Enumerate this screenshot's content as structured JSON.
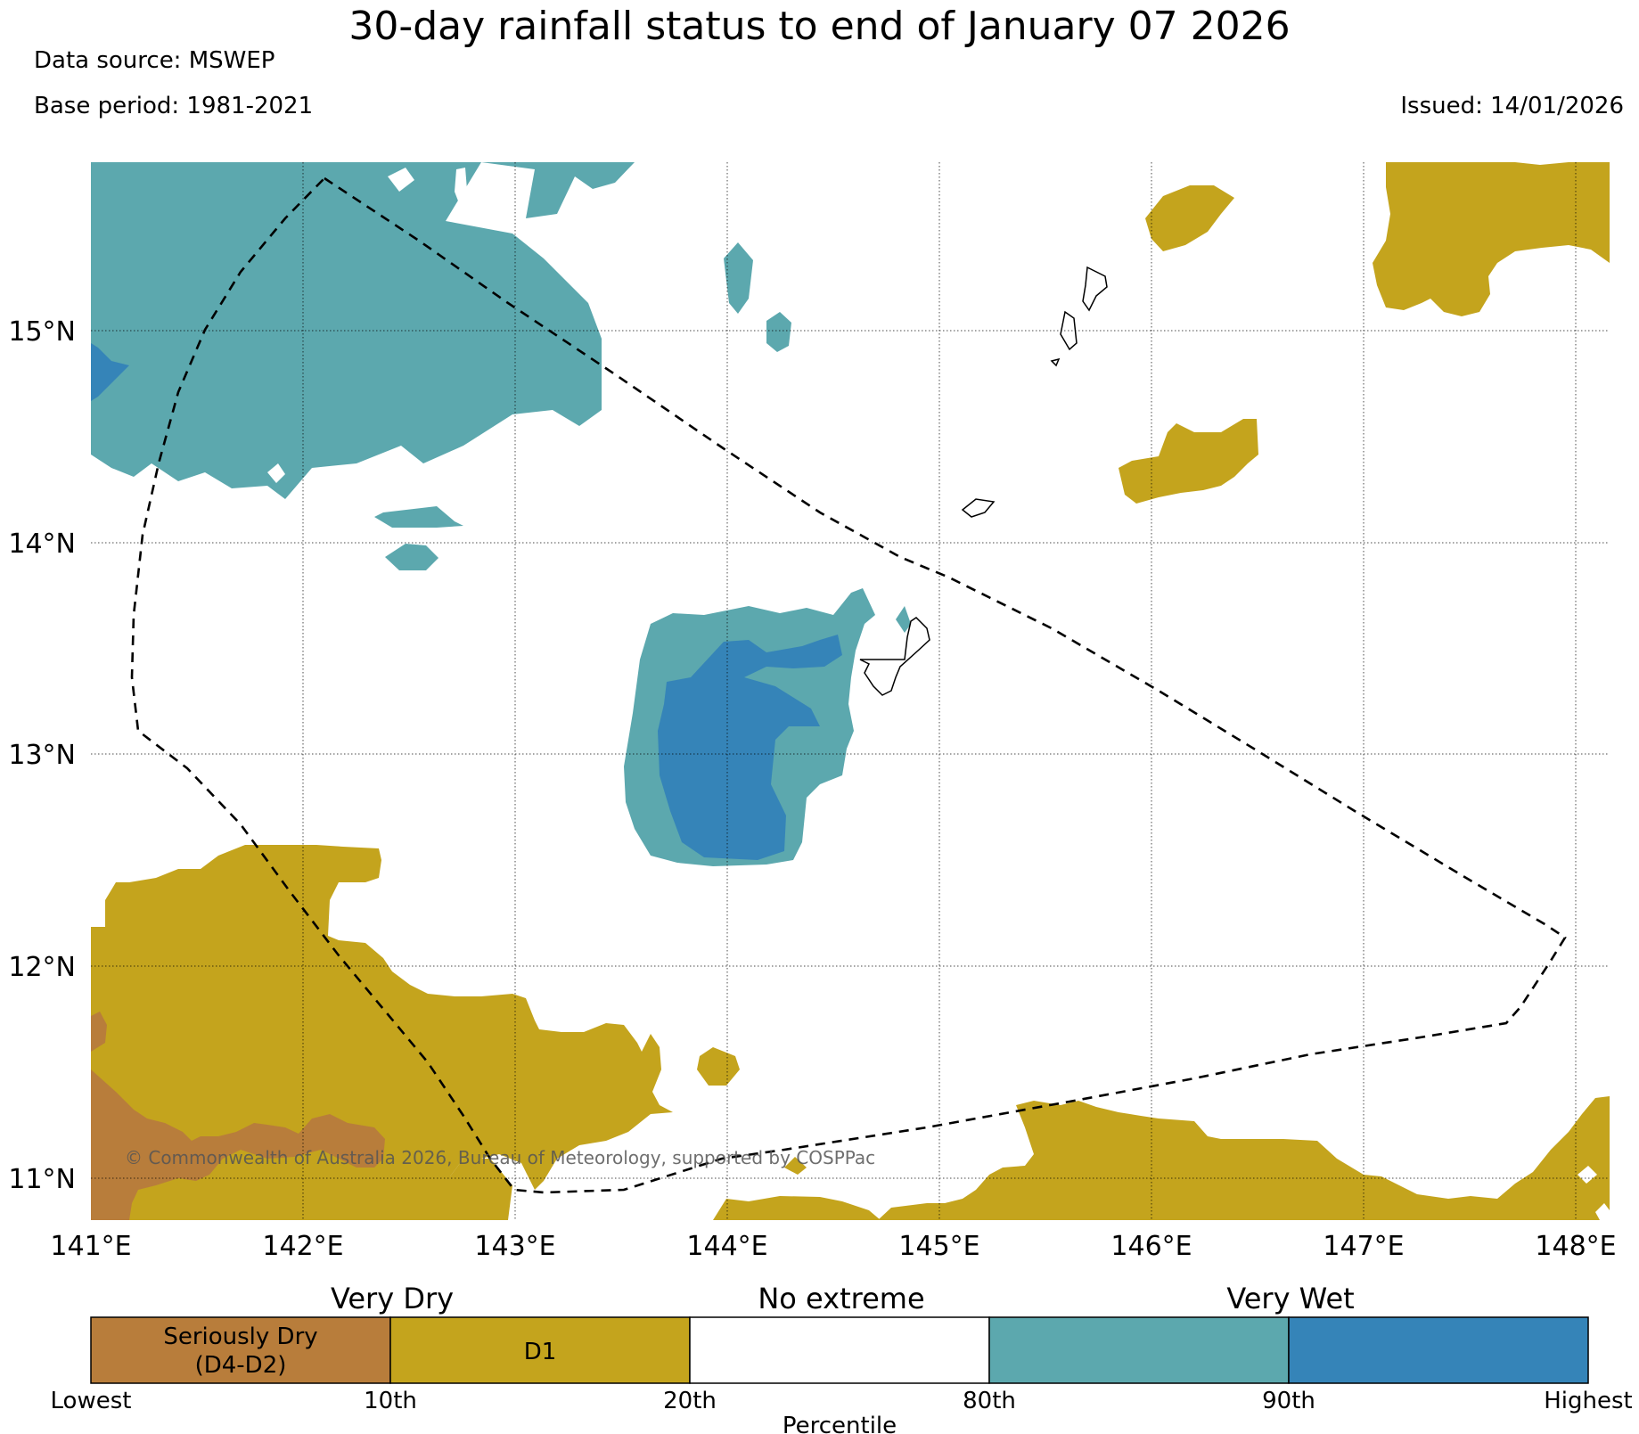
{
  "header": {
    "title": "30-day rainfall status to end of January 07 2026",
    "data_source": "Data source: MSWEP",
    "base_period": "Base period: 1981-2021",
    "issued": "Issued: 14/01/2026"
  },
  "map": {
    "lat_ticks": [
      "15°N",
      "14°N",
      "13°N",
      "12°N",
      "11°N"
    ],
    "lon_ticks": [
      "141°E",
      "142°E",
      "143°E",
      "144°E",
      "145°E",
      "146°E",
      "147°E",
      "148°E"
    ],
    "copyright": "© Commonwealth of Australia 2026, Bureau of Meteorology, supported by COSPPac",
    "colors": {
      "seriously_dry": "#b87d3b",
      "d1": "#c4a41d",
      "no_extreme": "#ffffff",
      "wet": "#5ca8ae",
      "very_wet": "#3584b8"
    }
  },
  "legend": {
    "group_labels": [
      "Very Dry",
      "No extreme",
      "Very Wet"
    ],
    "box_label_dry_line1": "Seriously Dry",
    "box_label_dry_line2": "(D4-D2)",
    "box_label_d1": "D1",
    "ticks": [
      "Lowest",
      "10th",
      "20th",
      "80th",
      "90th",
      "Highest"
    ],
    "axis_title": "Percentile"
  }
}
